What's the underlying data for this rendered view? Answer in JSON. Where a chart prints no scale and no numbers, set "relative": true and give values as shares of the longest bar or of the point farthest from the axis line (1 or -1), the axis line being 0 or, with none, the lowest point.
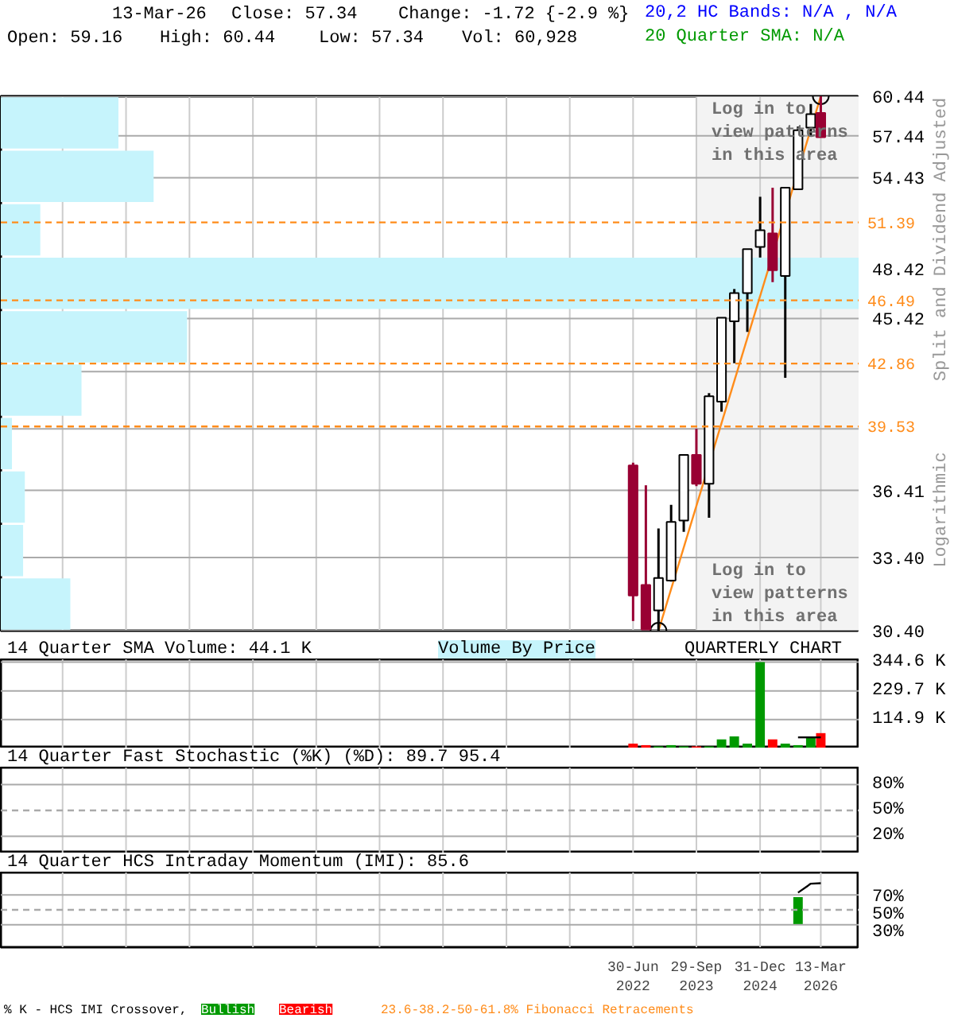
{
  "chart_data": [
    {
      "type": "candlestick",
      "x": [
        "2022-06-30",
        "2022-09-30",
        "2022-12-30",
        "2023-03-31",
        "2023-06-30",
        "2023-09-29",
        "2023-12-29",
        "2024-03-28",
        "2024-06-28",
        "2024-09-30",
        "2024-12-31",
        "2025-03-31",
        "2025-06-30",
        "2025-09-30",
        "2025-12-31",
        "2026-03-13"
      ],
      "ohlc": [
        [
          37.6,
          37.73,
          30.78,
          31.81
        ],
        [
          32.24,
          36.65,
          30.45,
          30.45
        ],
        [
          31.2,
          34.67,
          30.4,
          32.53
        ],
        [
          32.42,
          35.74,
          32.38,
          34.96
        ],
        [
          35.03,
          38.11,
          34.52,
          38.11
        ],
        [
          38.11,
          39.41,
          36.61,
          36.72
        ],
        [
          36.72,
          41.26,
          35.15,
          41.09
        ],
        [
          40.81,
          45.46,
          40.29,
          45.46
        ],
        [
          45.25,
          47.17,
          42.88,
          46.92
        ],
        [
          46.92,
          49.65,
          44.64,
          49.65
        ],
        [
          49.79,
          53.11,
          49.12,
          50.87
        ],
        [
          50.67,
          53.73,
          47.59,
          48.33
        ],
        [
          47.97,
          53.73,
          42.08,
          53.73
        ],
        [
          53.62,
          58.13,
          53.62,
          57.85
        ],
        [
          58.05,
          59.84,
          57.47,
          59.06
        ],
        [
          59.16,
          60.44,
          57.34,
          57.34
        ]
      ],
      "colors": [
        "#990033",
        "#990033",
        "#ffffff",
        "#ffffff",
        "#ffffff",
        "#990033",
        "#ffffff",
        "#ffffff",
        "#ffffff",
        "#ffffff",
        "#ffffff",
        "#990033",
        "#ffffff",
        "#ffffff",
        "#ffffff",
        "#990033"
      ],
      "xlim": [
        "2010-01-10",
        "2026-12-16"
      ],
      "xticks": [
        {
          "value": "2011-03-31",
          "label": null
        },
        {
          "value": "2012-06-30",
          "label": null
        },
        {
          "value": "2013-09-30",
          "label": null
        },
        {
          "value": "2014-12-31",
          "label": null
        },
        {
          "value": "2016-03-31",
          "label": null
        },
        {
          "value": "2017-06-30",
          "label": null
        },
        {
          "value": "2018-09-30",
          "label": null
        },
        {
          "value": "2019-12-31",
          "label": null
        },
        {
          "value": "2021-03-31",
          "label": null
        },
        {
          "value": "2022-06-30",
          "label": null
        },
        {
          "value": "2023-09-29",
          "label": null
        },
        {
          "value": "2024-12-31",
          "label": null
        },
        {
          "value": "2026-03-13",
          "label": null
        }
      ],
      "ylim": [
        30.4,
        60.44
      ],
      "yticks": [
        {
          "value": 30.4,
          "label": "30.40"
        },
        {
          "value": 33.4,
          "label": "33.40"
        },
        36.41,
        {
          "value": 39.41,
          "label": null
        },
        {
          "value": 42.42,
          "label": null
        },
        45.42,
        48.42,
        54.43,
        57.44,
        60.44
      ],
      "log": true,
      "grid": true,
      "tick_labels": "y",
      "bands": [
        {
          "axis": "x",
          "from": "2023-09-29",
          "to": "2026-12-16",
          "color": "#f3f3f3"
        }
      ],
      "ref_lines": [
        {
          "axis": "y",
          "value": 51.39,
          "label": "51.39",
          "color": "#ff8c1a",
          "line_style": "dashed"
        },
        {
          "axis": "y",
          "value": 46.49,
          "label": "46.49",
          "color": "#ff8c1a",
          "line_style": "dashed"
        },
        {
          "axis": "y",
          "value": 42.86,
          "label": "42.86",
          "color": "#ff8c1a",
          "line_style": "dashed"
        },
        {
          "axis": "y",
          "value": 39.53,
          "label": "39.53",
          "color": "#ff8c1a",
          "line_style": "dashed"
        }
      ],
      "series": [
        {
          "type": "line",
          "color": "#ff8c1a",
          "x": [
            "2022-12-30",
            "2026-03-13"
          ],
          "values": [
            30.4,
            60.44
          ],
          "marker": "circle"
        }
      ],
      "annotations": [
        "13-Mar-26",
        "Close: 57.34",
        "Change: -1.72 {-2.9 %}",
        "20,2 HC Bands: N/A , N/A",
        "Open: 59.16",
        "High: 60.44",
        "Low: 57.34",
        "Vol: 60,928",
        "20 Quarter SMA: N/A",
        "Log in to\nview patterns\nin this area",
        "Log in to\nview patterns\nin this area",
        "Split and Dividend Adjusted",
        "Logarithmic"
      ]
    },
    {
      "type": "bar",
      "orientation": "horizontal",
      "relative": true,
      "title": "Volume By Price",
      "color": "#c6f4fc",
      "categories": [
        null,
        null,
        null,
        null,
        null,
        null,
        null,
        null,
        null,
        null
      ],
      "values": [
        0.137,
        0.178,
        0.046,
        1,
        0.217,
        0.094,
        0.013,
        0.028,
        0.026,
        0.081
      ]
    },
    {
      "type": "bar",
      "title": "14 Quarter SMA Volume: 44.1 K",
      "x": [
        "2022-06-30",
        "2022-09-30",
        "2022-12-30",
        "2023-03-31",
        "2023-06-30",
        "2023-09-29",
        "2023-12-29",
        "2024-03-28",
        "2024-06-28",
        "2024-09-30",
        "2024-12-31",
        "2025-03-31",
        "2025-06-30",
        "2025-09-30",
        "2025-12-31",
        "2026-03-13"
      ],
      "series": [
        {
          "type": "bar",
          "colors": [
            "#ff0000",
            "#ff0000",
            "#009900",
            "#009900",
            "#009900",
            "#ff0000",
            "#009900",
            "#009900",
            "#009900",
            "#009900",
            "#009900",
            "#ff0000",
            "#009900",
            "#009900",
            "#009900",
            "#ff0000"
          ],
          "values": [
            19,
            13,
            8,
            13,
            8,
            8,
            8,
            36,
            48,
            19,
            345,
            36,
            19,
            13,
            46,
            61
          ]
        },
        {
          "type": "line",
          "color": "#000000",
          "values": [
            null,
            null,
            null,
            null,
            null,
            null,
            null,
            null,
            null,
            null,
            null,
            null,
            null,
            44.1,
            44.1,
            44.1
          ]
        }
      ],
      "xlim": [
        "2010-01-10",
        "2026-12-16"
      ],
      "xticks": [
        {
          "value": "2011-03-31",
          "label": null
        },
        {
          "value": "2012-06-30",
          "label": null
        },
        {
          "value": "2013-09-30",
          "label": null
        },
        {
          "value": "2014-12-31",
          "label": null
        },
        {
          "value": "2016-03-31",
          "label": null
        },
        {
          "value": "2017-06-30",
          "label": null
        },
        {
          "value": "2018-09-30",
          "label": null
        },
        {
          "value": "2019-12-31",
          "label": null
        },
        {
          "value": "2021-03-31",
          "label": null
        },
        {
          "value": "2022-06-30",
          "label": null
        },
        {
          "value": "2023-09-29",
          "label": null
        },
        {
          "value": "2024-12-31",
          "label": null
        },
        {
          "value": "2026-03-13",
          "label": null
        }
      ],
      "ylim": [
        0,
        356
      ],
      "yticks": [
        {
          "value": 114.9,
          "label": "114.9 K"
        },
        {
          "value": 229.7,
          "label": "229.7 K"
        },
        {
          "value": 344.6,
          "label": "344.6 K"
        }
      ],
      "grid": true,
      "tick_labels": "y",
      "annotations": [
        "QUARTERLY CHART"
      ]
    },
    {
      "type": "line",
      "title": "14 Quarter Fast Stochastic (%K) (%D): 89.7 95.4",
      "xlim": [
        "2010-01-10",
        "2026-12-16"
      ],
      "xticks": [
        {
          "value": "2011-03-31",
          "label": null
        },
        {
          "value": "2012-06-30",
          "label": null
        },
        {
          "value": "2013-09-30",
          "label": null
        },
        {
          "value": "2014-12-31",
          "label": null
        },
        {
          "value": "2016-03-31",
          "label": null
        },
        {
          "value": "2017-06-30",
          "label": null
        },
        {
          "value": "2018-09-30",
          "label": null
        },
        {
          "value": "2019-12-31",
          "label": null
        },
        {
          "value": "2021-03-31",
          "label": null
        },
        {
          "value": "2022-06-30",
          "label": null
        },
        {
          "value": "2023-09-29",
          "label": null
        },
        {
          "value": "2024-12-31",
          "label": null
        },
        {
          "value": "2026-03-13",
          "label": null
        }
      ],
      "ylim": [
        0,
        100
      ],
      "yticks": [
        {
          "value": 20,
          "label": "20%"
        },
        {
          "value": 50,
          "label": "50%"
        },
        {
          "value": 80,
          "label": "80%"
        }
      ],
      "ref_lines": [
        {
          "axis": "y",
          "value": 50,
          "color": "#aaaaaa",
          "line_style": "dashed"
        }
      ],
      "grid": true,
      "tick_labels": "y"
    },
    {
      "type": "bar",
      "title": "14 Quarter HCS Intraday Momentum (IMI): 85.6",
      "series": [
        {
          "type": "bar",
          "color": "#009900",
          "x": [
            "2025-09-30"
          ],
          "values": [
            36
          ],
          "base": [
            31
          ]
        },
        {
          "type": "line",
          "color": "#000000",
          "x": [
            "2025-09-30",
            "2025-12-31",
            "2026-03-13"
          ],
          "values": [
            73,
            85,
            85.6
          ]
        }
      ],
      "xlim": [
        "2010-01-10",
        "2026-12-16"
      ],
      "xticks": [
        {
          "value": "2011-03-31",
          "label": null
        },
        {
          "value": "2012-06-30",
          "label": null
        },
        {
          "value": "2013-09-30",
          "label": null
        },
        {
          "value": "2014-12-31",
          "label": null
        },
        {
          "value": "2016-03-31",
          "label": null
        },
        {
          "value": "2017-06-30",
          "label": null
        },
        {
          "value": "2018-09-30",
          "label": null
        },
        {
          "value": "2019-12-31",
          "label": null
        },
        {
          "value": "2021-03-31",
          "label": null
        },
        {
          "value": "2022-06-30",
          "label": "30-Jun\n2022"
        },
        {
          "value": "2023-09-29",
          "label": "29-Sep\n2023"
        },
        {
          "value": "2024-12-31",
          "label": "31-Dec\n2024"
        },
        {
          "value": "2026-03-13",
          "label": "13-Mar\n2026"
        }
      ],
      "ylim": [
        0,
        100
      ],
      "yticks": [
        {
          "value": 30,
          "label": "30%"
        },
        {
          "value": 50,
          "label": "50%"
        },
        {
          "value": 70,
          "label": "70%"
        }
      ],
      "ref_lines": [
        {
          "axis": "y",
          "value": 50,
          "color": "#aaaaaa",
          "line_style": "dashed"
        }
      ],
      "grid": true,
      "annotations": [
        "% K - HCS IMI Crossover,",
        "Bullish",
        "Bearish",
        "23.6-38.2-50-61.8% Fibonacci Retracements"
      ]
    }
  ]
}
